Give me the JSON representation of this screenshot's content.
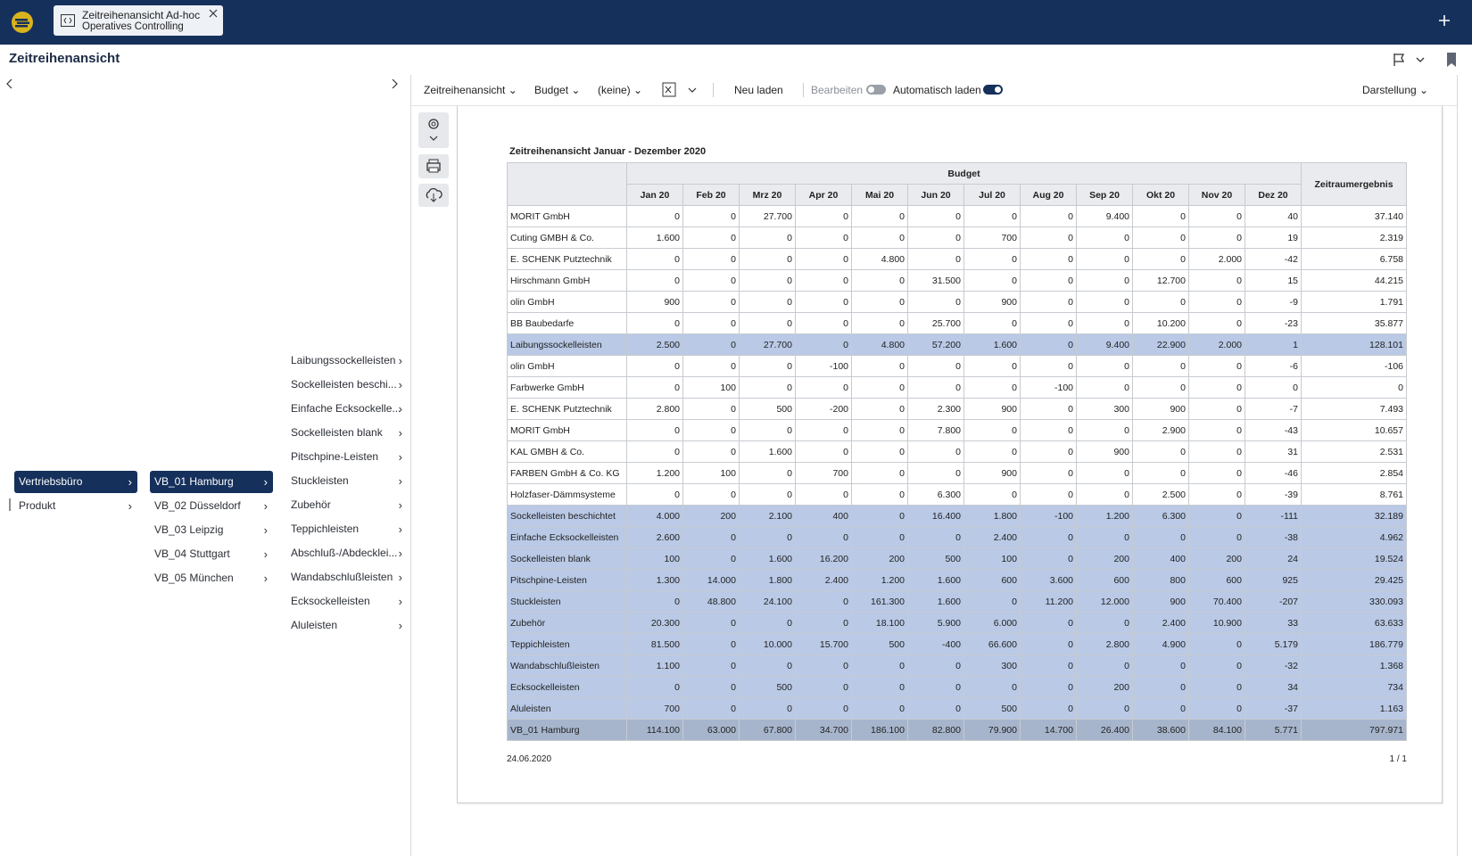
{
  "header": {
    "tab_title": "Zeitreihenansicht Ad-hoc",
    "tab_subtitle": "Operatives Controlling"
  },
  "page_title": "Zeitreihenansicht",
  "navigation": {
    "level1": [
      "Vertriebsbüro",
      "Produkt"
    ],
    "level2": [
      "VB_01 Hamburg",
      "VB_02 Düsseldorf",
      "VB_03 Leipzig",
      "VB_04 Stuttgart",
      "VB_05 München"
    ],
    "level3": [
      "Laibungssockelleisten",
      "Sockelleisten beschi...",
      "Einfache Ecksockelle...",
      "Sockelleisten blank",
      "Pitschpine-Leisten",
      "Stuckleisten",
      "Zubehör",
      "Teppichleisten",
      "Abschluß-/Abdecklei...",
      "Wandabschlußleisten",
      "Ecksockelleisten",
      "Aluleisten"
    ]
  },
  "toolbar": {
    "view": "Zeitreihenansicht",
    "version": "Budget",
    "filter": "(keine)",
    "reload": "Neu laden",
    "edit": "Bearbeiten",
    "autoload": "Automatisch laden",
    "display": "Darstellung"
  },
  "report": {
    "title": "Zeitreihenansicht Januar - Dezember 2020",
    "group_header": "Budget",
    "total_header": "Zeitraumergebnis",
    "months": [
      "Jan 20",
      "Feb 20",
      "Mrz 20",
      "Apr 20",
      "Mai 20",
      "Jun 20",
      "Jul 20",
      "Aug 20",
      "Sep 20",
      "Okt 20",
      "Nov 20",
      "Dez 20"
    ],
    "rows": [
      {
        "label": "MORIT GmbH",
        "values": [
          "0",
          "0",
          "27.700",
          "0",
          "0",
          "0",
          "0",
          "0",
          "9.400",
          "0",
          "0",
          "40"
        ],
        "total": "37.140"
      },
      {
        "label": "Cuting GMBH & Co.",
        "values": [
          "1.600",
          "0",
          "0",
          "0",
          "0",
          "0",
          "700",
          "0",
          "0",
          "0",
          "0",
          "19"
        ],
        "total": "2.319"
      },
      {
        "label": "E. SCHENK Putztechnik",
        "values": [
          "0",
          "0",
          "0",
          "0",
          "4.800",
          "0",
          "0",
          "0",
          "0",
          "0",
          "2.000",
          "-42"
        ],
        "total": "6.758"
      },
      {
        "label": "Hirschmann GmbH",
        "values": [
          "0",
          "0",
          "0",
          "0",
          "0",
          "31.500",
          "0",
          "0",
          "0",
          "12.700",
          "0",
          "15"
        ],
        "total": "44.215"
      },
      {
        "label": "olin GmbH",
        "values": [
          "900",
          "0",
          "0",
          "0",
          "0",
          "0",
          "900",
          "0",
          "0",
          "0",
          "0",
          "-9"
        ],
        "total": "1.791"
      },
      {
        "label": "BB Baubedarfe",
        "values": [
          "0",
          "0",
          "0",
          "0",
          "0",
          "25.700",
          "0",
          "0",
          "0",
          "10.200",
          "0",
          "-23"
        ],
        "total": "35.877"
      },
      {
        "label": "Laibungssockelleisten",
        "values": [
          "2.500",
          "0",
          "27.700",
          "0",
          "4.800",
          "57.200",
          "1.600",
          "0",
          "9.400",
          "22.900",
          "2.000",
          "1"
        ],
        "total": "128.101"
      },
      {
        "label": "olin GmbH",
        "values": [
          "0",
          "0",
          "0",
          "-100",
          "0",
          "0",
          "0",
          "0",
          "0",
          "0",
          "0",
          "-6"
        ],
        "total": "-106"
      },
      {
        "label": "Farbwerke GmbH",
        "values": [
          "0",
          "100",
          "0",
          "0",
          "0",
          "0",
          "0",
          "-100",
          "0",
          "0",
          "0",
          "0"
        ],
        "total": "0"
      },
      {
        "label": "E. SCHENK Putztechnik",
        "values": [
          "2.800",
          "0",
          "500",
          "-200",
          "0",
          "2.300",
          "900",
          "0",
          "300",
          "900",
          "0",
          "-7"
        ],
        "total": "7.493"
      },
      {
        "label": "MORIT GmbH",
        "values": [
          "0",
          "0",
          "0",
          "0",
          "0",
          "7.800",
          "0",
          "0",
          "0",
          "2.900",
          "0",
          "-43"
        ],
        "total": "10.657"
      },
      {
        "label": "KAL GMBH & Co.",
        "values": [
          "0",
          "0",
          "1.600",
          "0",
          "0",
          "0",
          "0",
          "0",
          "900",
          "0",
          "0",
          "31"
        ],
        "total": "2.531"
      },
      {
        "label": "FARBEN GmbH & Co. KG",
        "values": [
          "1.200",
          "100",
          "0",
          "700",
          "0",
          "0",
          "900",
          "0",
          "0",
          "0",
          "0",
          "-46"
        ],
        "total": "2.854"
      },
      {
        "label": "Holzfaser-Dämmsysteme",
        "values": [
          "0",
          "0",
          "0",
          "0",
          "0",
          "6.300",
          "0",
          "0",
          "0",
          "2.500",
          "0",
          "-39"
        ],
        "total": "8.761"
      },
      {
        "label": "Sockelleisten beschichtet",
        "values": [
          "4.000",
          "200",
          "2.100",
          "400",
          "0",
          "16.400",
          "1.800",
          "-100",
          "1.200",
          "6.300",
          "0",
          "-111"
        ],
        "total": "32.189"
      },
      {
        "label": "Einfache Ecksockelleisten",
        "values": [
          "2.600",
          "0",
          "0",
          "0",
          "0",
          "0",
          "2.400",
          "0",
          "0",
          "0",
          "0",
          "-38"
        ],
        "total": "4.962"
      },
      {
        "label": "Sockelleisten blank",
        "values": [
          "100",
          "0",
          "1.600",
          "16.200",
          "200",
          "500",
          "100",
          "0",
          "200",
          "400",
          "200",
          "24"
        ],
        "total": "19.524"
      },
      {
        "label": "Pitschpine-Leisten",
        "values": [
          "1.300",
          "14.000",
          "1.800",
          "2.400",
          "1.200",
          "1.600",
          "600",
          "3.600",
          "600",
          "800",
          "600",
          "925"
        ],
        "total": "29.425"
      },
      {
        "label": "Stuckleisten",
        "values": [
          "0",
          "48.800",
          "24.100",
          "0",
          "161.300",
          "1.600",
          "0",
          "11.200",
          "12.000",
          "900",
          "70.400",
          "-207"
        ],
        "total": "330.093"
      },
      {
        "label": "Zubehör",
        "values": [
          "20.300",
          "0",
          "0",
          "0",
          "18.100",
          "5.900",
          "6.000",
          "0",
          "0",
          "2.400",
          "10.900",
          "33"
        ],
        "total": "63.633"
      },
      {
        "label": "Teppichleisten",
        "values": [
          "81.500",
          "0",
          "10.000",
          "15.700",
          "500",
          "-400",
          "66.600",
          "0",
          "2.800",
          "4.900",
          "0",
          "5.179"
        ],
        "total": "186.779"
      },
      {
        "label": "Wandabschlußleisten",
        "values": [
          "1.100",
          "0",
          "0",
          "0",
          "0",
          "0",
          "300",
          "0",
          "0",
          "0",
          "0",
          "-32"
        ],
        "total": "1.368"
      },
      {
        "label": "Ecksockelleisten",
        "values": [
          "0",
          "0",
          "500",
          "0",
          "0",
          "0",
          "0",
          "0",
          "200",
          "0",
          "0",
          "34"
        ],
        "total": "734"
      },
      {
        "label": "Aluleisten",
        "values": [
          "700",
          "0",
          "0",
          "0",
          "0",
          "0",
          "500",
          "0",
          "0",
          "0",
          "0",
          "-37"
        ],
        "total": "1.163"
      },
      {
        "label": "VB_01 Hamburg",
        "values": [
          "114.100",
          "63.000",
          "67.800",
          "34.700",
          "186.100",
          "82.800",
          "79.900",
          "14.700",
          "26.400",
          "38.600",
          "84.100",
          "5.771"
        ],
        "total": "797.971"
      }
    ],
    "date": "24.06.2020",
    "page": "1 / 1"
  }
}
